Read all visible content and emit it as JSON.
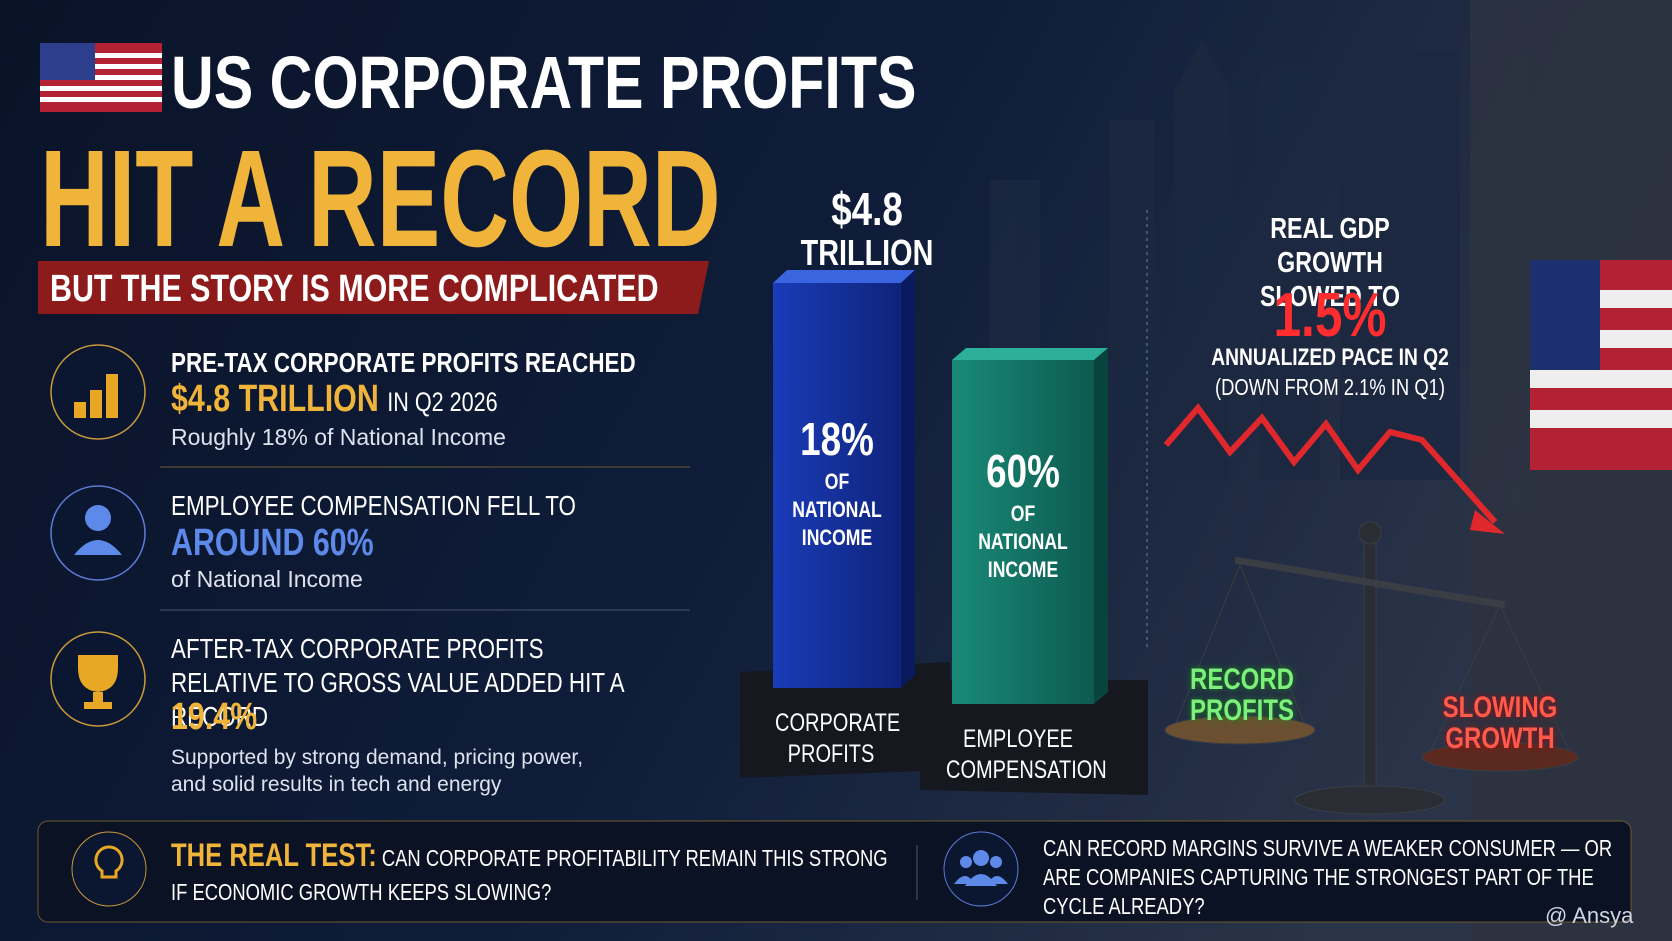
{
  "header": {
    "title_line1": "US CORPORATE PROFITS",
    "title_line2": "HIT A RECORD",
    "subtitle": "BUT THE STORY IS MORE COMPLICATED"
  },
  "facts": [
    {
      "lead": "PRE-TAX CORPORATE PROFITS REACHED",
      "highlight": "$4.8 TRILLION",
      "tail": "IN Q2 2026",
      "note": "Roughly 18% of National Income"
    },
    {
      "lead": "EMPLOYEE COMPENSATION FELL TO",
      "highlight": "AROUND 60%",
      "note": "of National Income"
    },
    {
      "lead": "AFTER-TAX CORPORATE PROFITS RELATIVE TO GROSS VALUE ADDED HIT A RECORD",
      "highlight": "19.4%",
      "note": "Supported by strong demand, pricing power, and solid results in tech and energy"
    }
  ],
  "bars": [
    {
      "top_value": "$4.8",
      "top_unit": "TRILLION",
      "share": "18%",
      "caption": "OF NATIONAL INCOME",
      "label": "CORPORATE PROFITS"
    },
    {
      "share": "60%",
      "caption": "OF NATIONAL INCOME",
      "label": "EMPLOYEE COMPENSATION"
    }
  ],
  "gdp": {
    "title": "REAL GDP GROWTH SLOWED TO",
    "value": "1.5%",
    "line1": "ANNUALIZED PACE IN Q2",
    "line2": "(DOWN FROM 2.1% IN Q1)"
  },
  "scale": {
    "left": "RECORD PROFITS",
    "right": "SLOWING GROWTH"
  },
  "footer": {
    "label": "THE REAL TEST:",
    "question": "CAN CORPORATE PROFITABILITY REMAIN THIS STRONG IF ECONOMIC GROWTH KEEPS SLOWING?",
    "question2": "CAN RECORD MARGINS SURVIVE A WEAKER CONSUMER — OR ARE COMPANIES CAPTURING THE STRONGEST PART OF THE CYCLE ALREADY?",
    "credit": "@ Ansya"
  }
}
